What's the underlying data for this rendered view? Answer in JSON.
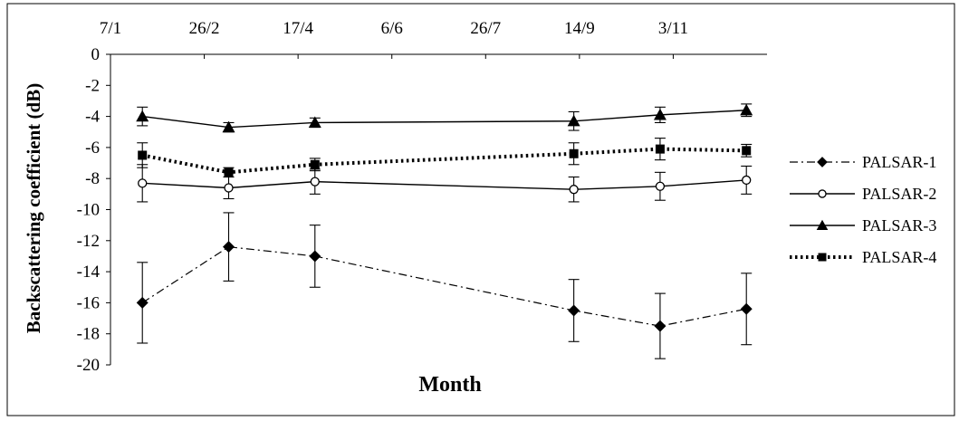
{
  "chart_data": {
    "type": "line",
    "xlabel": "Month",
    "ylabel": "Backscattering coefficient (dB)",
    "x_ticks": [
      "7/1",
      "26/2",
      "17/4",
      "6/6",
      "26/7",
      "14/9",
      "3/11"
    ],
    "x_tick_days": [
      7,
      57,
      107,
      157,
      207,
      257,
      307
    ],
    "x_range_days": [
      7,
      357
    ],
    "ylim": [
      -20,
      0
    ],
    "y_ticks": [
      0,
      -2,
      -4,
      -6,
      -8,
      -10,
      -12,
      -14,
      -16,
      -18,
      -20
    ],
    "grid": false,
    "legend_position": "right",
    "x": [
      "2010-01-24",
      "2010-03-11",
      "2010-04-26",
      "2010-09-11",
      "2010-10-27",
      "2010-12-12"
    ],
    "x_days": [
      24,
      70,
      116,
      254,
      300,
      346
    ],
    "series": [
      {
        "name": "PALSAR-1",
        "values": [
          -16.0,
          -12.4,
          -13.0,
          -16.5,
          -17.5,
          -16.4
        ],
        "error": [
          2.6,
          2.2,
          2.0,
          2.0,
          2.1,
          2.3
        ],
        "color": "#000000",
        "marker": "diamond",
        "line_style": "dash-dot"
      },
      {
        "name": "PALSAR-2",
        "values": [
          -8.3,
          -8.6,
          -8.2,
          -8.7,
          -8.5,
          -8.1
        ],
        "error": [
          1.2,
          0.7,
          0.8,
          0.8,
          0.9,
          0.9
        ],
        "color": "#000000",
        "marker": "open-circle",
        "line_style": "solid"
      },
      {
        "name": "PALSAR-3",
        "values": [
          -4.0,
          -4.7,
          -4.4,
          -4.3,
          -3.9,
          -3.6
        ],
        "error": [
          0.6,
          0.3,
          0.3,
          0.6,
          0.5,
          0.4
        ],
        "color": "#000000",
        "marker": "triangle",
        "line_style": "solid"
      },
      {
        "name": "PALSAR-4",
        "values": [
          -6.5,
          -7.6,
          -7.1,
          -6.4,
          -6.1,
          -6.2
        ],
        "error": [
          0.8,
          0.3,
          0.4,
          0.7,
          0.7,
          0.4
        ],
        "color": "#000000",
        "marker": "square",
        "line_style": "dotted"
      }
    ]
  }
}
